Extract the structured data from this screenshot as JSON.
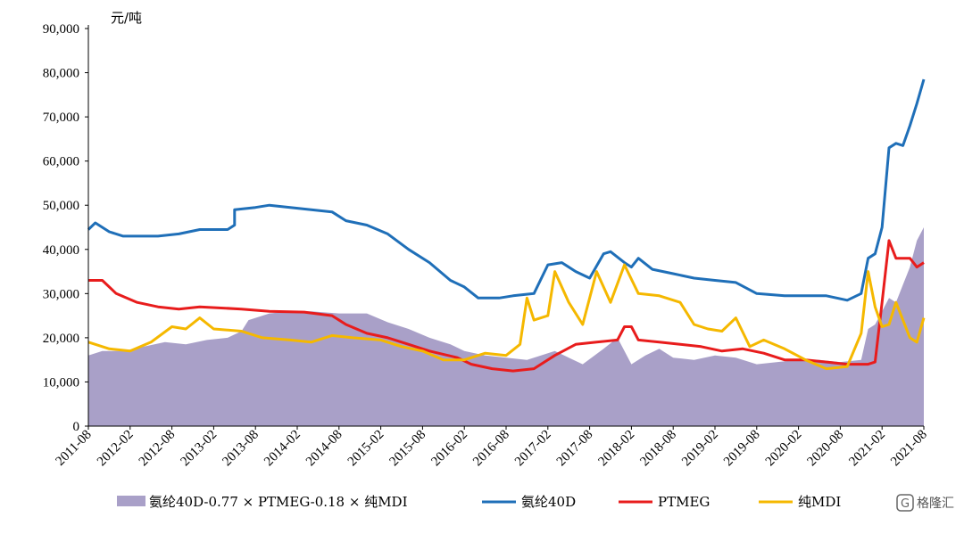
{
  "chart_data": {
    "type": "line",
    "ylabel_unit": "元/吨",
    "ylim": [
      0,
      90000
    ],
    "yticks": [
      "0",
      "10,000",
      "20,000",
      "30,000",
      "40,000",
      "50,000",
      "60,000",
      "70,000",
      "80,000",
      "90,000"
    ],
    "ytick_values": [
      0,
      10000,
      20000,
      30000,
      40000,
      50000,
      60000,
      70000,
      80000,
      90000
    ],
    "xlim": [
      "2011-08",
      "2021-08"
    ],
    "xticks": [
      "2011-08",
      "2012-02",
      "2012-08",
      "2013-02",
      "2013-08",
      "2014-02",
      "2014-08",
      "2015-02",
      "2015-08",
      "2016-02",
      "2016-08",
      "2017-02",
      "2017-08",
      "2018-02",
      "2018-08",
      "2019-02",
      "2019-08",
      "2020-02",
      "2020-08",
      "2021-02",
      "2021-08"
    ],
    "legend_position": "bottom",
    "grid": false,
    "series": [
      {
        "name": "氨纶40D-0.77 × PTMEG-0.18 × 纯MDI",
        "kind": "area",
        "color": "#a9a0c8",
        "points": [
          [
            "2011-08",
            16000
          ],
          [
            "2011-10",
            17000
          ],
          [
            "2012-01",
            17000
          ],
          [
            "2012-04",
            18000
          ],
          [
            "2012-07",
            19000
          ],
          [
            "2012-10",
            18500
          ],
          [
            "2013-01",
            19500
          ],
          [
            "2013-04",
            20000
          ],
          [
            "2013-06",
            21500
          ],
          [
            "2013-07",
            24000
          ],
          [
            "2013-10",
            25500
          ],
          [
            "2014-01",
            26000
          ],
          [
            "2014-04",
            26000
          ],
          [
            "2014-08",
            25500
          ],
          [
            "2014-12",
            25500
          ],
          [
            "2015-03",
            23500
          ],
          [
            "2015-06",
            22000
          ],
          [
            "2015-09",
            20000
          ],
          [
            "2015-12",
            18500
          ],
          [
            "2016-02",
            17000
          ],
          [
            "2016-05",
            16000
          ],
          [
            "2016-08",
            15500
          ],
          [
            "2016-11",
            15000
          ],
          [
            "2017-01",
            16000
          ],
          [
            "2017-03",
            17000
          ],
          [
            "2017-05",
            15500
          ],
          [
            "2017-07",
            14000
          ],
          [
            "2017-10",
            17500
          ],
          [
            "2017-12",
            20000
          ],
          [
            "2018-02",
            14000
          ],
          [
            "2018-04",
            16000
          ],
          [
            "2018-06",
            17500
          ],
          [
            "2018-08",
            15500
          ],
          [
            "2018-11",
            15000
          ],
          [
            "2019-02",
            16000
          ],
          [
            "2019-05",
            15500
          ],
          [
            "2019-08",
            14000
          ],
          [
            "2019-11",
            14500
          ],
          [
            "2020-02",
            15000
          ],
          [
            "2020-05",
            15000
          ],
          [
            "2020-08",
            14500
          ],
          [
            "2020-11",
            15000
          ],
          [
            "2020-12",
            22000
          ],
          [
            "2021-01",
            23000
          ],
          [
            "2021-02",
            26000
          ],
          [
            "2021-03",
            29000
          ],
          [
            "2021-04",
            28000
          ],
          [
            "2021-05",
            32000
          ],
          [
            "2021-06",
            36000
          ],
          [
            "2021-07",
            42000
          ],
          [
            "2021-08",
            45000
          ]
        ]
      },
      {
        "name": "氨纶40D",
        "kind": "line",
        "color": "#1f6fb8",
        "points": [
          [
            "2011-08",
            44500
          ],
          [
            "2011-09",
            46000
          ],
          [
            "2011-11",
            44000
          ],
          [
            "2012-01",
            43000
          ],
          [
            "2012-06",
            43000
          ],
          [
            "2012-09",
            43500
          ],
          [
            "2012-12",
            44500
          ],
          [
            "2013-04",
            44500
          ],
          [
            "2013-05",
            45500
          ],
          [
            "2013-05",
            49000
          ],
          [
            "2013-08",
            49500
          ],
          [
            "2013-10",
            50000
          ],
          [
            "2014-01",
            49500
          ],
          [
            "2014-04",
            49000
          ],
          [
            "2014-07",
            48500
          ],
          [
            "2014-09",
            46500
          ],
          [
            "2014-12",
            45500
          ],
          [
            "2015-03",
            43500
          ],
          [
            "2015-06",
            40000
          ],
          [
            "2015-09",
            37000
          ],
          [
            "2015-12",
            33000
          ],
          [
            "2016-02",
            31500
          ],
          [
            "2016-04",
            29000
          ],
          [
            "2016-07",
            29000
          ],
          [
            "2016-09",
            29500
          ],
          [
            "2016-12",
            30000
          ],
          [
            "2017-02",
            36500
          ],
          [
            "2017-04",
            37000
          ],
          [
            "2017-06",
            35000
          ],
          [
            "2017-08",
            33500
          ],
          [
            "2017-10",
            39000
          ],
          [
            "2017-11",
            39500
          ],
          [
            "2018-01",
            37000
          ],
          [
            "2018-02",
            36000
          ],
          [
            "2018-03",
            38000
          ],
          [
            "2018-05",
            35500
          ],
          [
            "2018-08",
            34500
          ],
          [
            "2018-11",
            33500
          ],
          [
            "2019-02",
            33000
          ],
          [
            "2019-05",
            32500
          ],
          [
            "2019-08",
            30000
          ],
          [
            "2019-12",
            29500
          ],
          [
            "2020-04",
            29500
          ],
          [
            "2020-06",
            29500
          ],
          [
            "2020-09",
            28500
          ],
          [
            "2020-11",
            30000
          ],
          [
            "2020-12",
            38000
          ],
          [
            "2021-01",
            39000
          ],
          [
            "2021-02",
            45000
          ],
          [
            "2021-03",
            63000
          ],
          [
            "2021-04",
            64000
          ],
          [
            "2021-05",
            63500
          ],
          [
            "2021-06",
            68000
          ],
          [
            "2021-07",
            73000
          ],
          [
            "2021-08",
            78500
          ]
        ]
      },
      {
        "name": "PTMEG",
        "kind": "line",
        "color": "#e81c1c",
        "points": [
          [
            "2011-08",
            33000
          ],
          [
            "2011-10",
            33000
          ],
          [
            "2011-12",
            30000
          ],
          [
            "2012-03",
            28000
          ],
          [
            "2012-06",
            27000
          ],
          [
            "2012-09",
            26500
          ],
          [
            "2012-12",
            27000
          ],
          [
            "2013-06",
            26500
          ],
          [
            "2013-10",
            26000
          ],
          [
            "2014-03",
            25800
          ],
          [
            "2014-07",
            25000
          ],
          [
            "2014-09",
            23000
          ],
          [
            "2014-12",
            21000
          ],
          [
            "2015-03",
            20000
          ],
          [
            "2015-06",
            18500
          ],
          [
            "2015-09",
            17000
          ],
          [
            "2016-01",
            15500
          ],
          [
            "2016-03",
            14000
          ],
          [
            "2016-06",
            13000
          ],
          [
            "2016-09",
            12500
          ],
          [
            "2016-12",
            13000
          ],
          [
            "2017-03",
            16000
          ],
          [
            "2017-06",
            18500
          ],
          [
            "2017-09",
            19000
          ],
          [
            "2017-12",
            19500
          ],
          [
            "2018-01",
            22500
          ],
          [
            "2018-02",
            22500
          ],
          [
            "2018-03",
            19500
          ],
          [
            "2018-06",
            19000
          ],
          [
            "2018-09",
            18500
          ],
          [
            "2018-12",
            18000
          ],
          [
            "2019-03",
            17000
          ],
          [
            "2019-06",
            17500
          ],
          [
            "2019-09",
            16500
          ],
          [
            "2019-12",
            15000
          ],
          [
            "2020-03",
            15000
          ],
          [
            "2020-06",
            14500
          ],
          [
            "2020-09",
            14000
          ],
          [
            "2020-12",
            14000
          ],
          [
            "2021-01",
            14500
          ],
          [
            "2021-02",
            28000
          ],
          [
            "2021-03",
            42000
          ],
          [
            "2021-04",
            38000
          ],
          [
            "2021-06",
            38000
          ],
          [
            "2021-07",
            36000
          ],
          [
            "2021-08",
            37000
          ]
        ]
      },
      {
        "name": "纯MDI",
        "kind": "line",
        "color": "#f5b800",
        "points": [
          [
            "2011-08",
            19000
          ],
          [
            "2011-11",
            17500
          ],
          [
            "2012-02",
            17000
          ],
          [
            "2012-05",
            19000
          ],
          [
            "2012-08",
            22500
          ],
          [
            "2012-10",
            22000
          ],
          [
            "2012-12",
            24500
          ],
          [
            "2013-02",
            22000
          ],
          [
            "2013-06",
            21500
          ],
          [
            "2013-09",
            20000
          ],
          [
            "2014-01",
            19500
          ],
          [
            "2014-04",
            19000
          ],
          [
            "2014-07",
            20500
          ],
          [
            "2014-10",
            20000
          ],
          [
            "2015-02",
            19500
          ],
          [
            "2015-05",
            18000
          ],
          [
            "2015-08",
            17000
          ],
          [
            "2015-11",
            15000
          ],
          [
            "2016-02",
            15000
          ],
          [
            "2016-05",
            16500
          ],
          [
            "2016-08",
            16000
          ],
          [
            "2016-10",
            18500
          ],
          [
            "2016-11",
            29000
          ],
          [
            "2016-12",
            24000
          ],
          [
            "2017-02",
            25000
          ],
          [
            "2017-03",
            35000
          ],
          [
            "2017-05",
            28000
          ],
          [
            "2017-07",
            23000
          ],
          [
            "2017-09",
            35000
          ],
          [
            "2017-11",
            28000
          ],
          [
            "2018-01",
            36500
          ],
          [
            "2018-03",
            30000
          ],
          [
            "2018-06",
            29500
          ],
          [
            "2018-09",
            28000
          ],
          [
            "2018-11",
            23000
          ],
          [
            "2019-01",
            22000
          ],
          [
            "2019-03",
            21500
          ],
          [
            "2019-05",
            24500
          ],
          [
            "2019-07",
            18000
          ],
          [
            "2019-09",
            19500
          ],
          [
            "2019-12",
            17500
          ],
          [
            "2020-03",
            15000
          ],
          [
            "2020-06",
            13000
          ],
          [
            "2020-09",
            13500
          ],
          [
            "2020-11",
            21000
          ],
          [
            "2020-12",
            35000
          ],
          [
            "2021-01",
            27000
          ],
          [
            "2021-02",
            22500
          ],
          [
            "2021-03",
            23000
          ],
          [
            "2021-04",
            28000
          ],
          [
            "2021-06",
            20000
          ],
          [
            "2021-07",
            19000
          ],
          [
            "2021-08",
            24500
          ]
        ]
      }
    ]
  },
  "watermark": {
    "logo_text": "格隆汇",
    "icon": "g-logo-icon"
  }
}
